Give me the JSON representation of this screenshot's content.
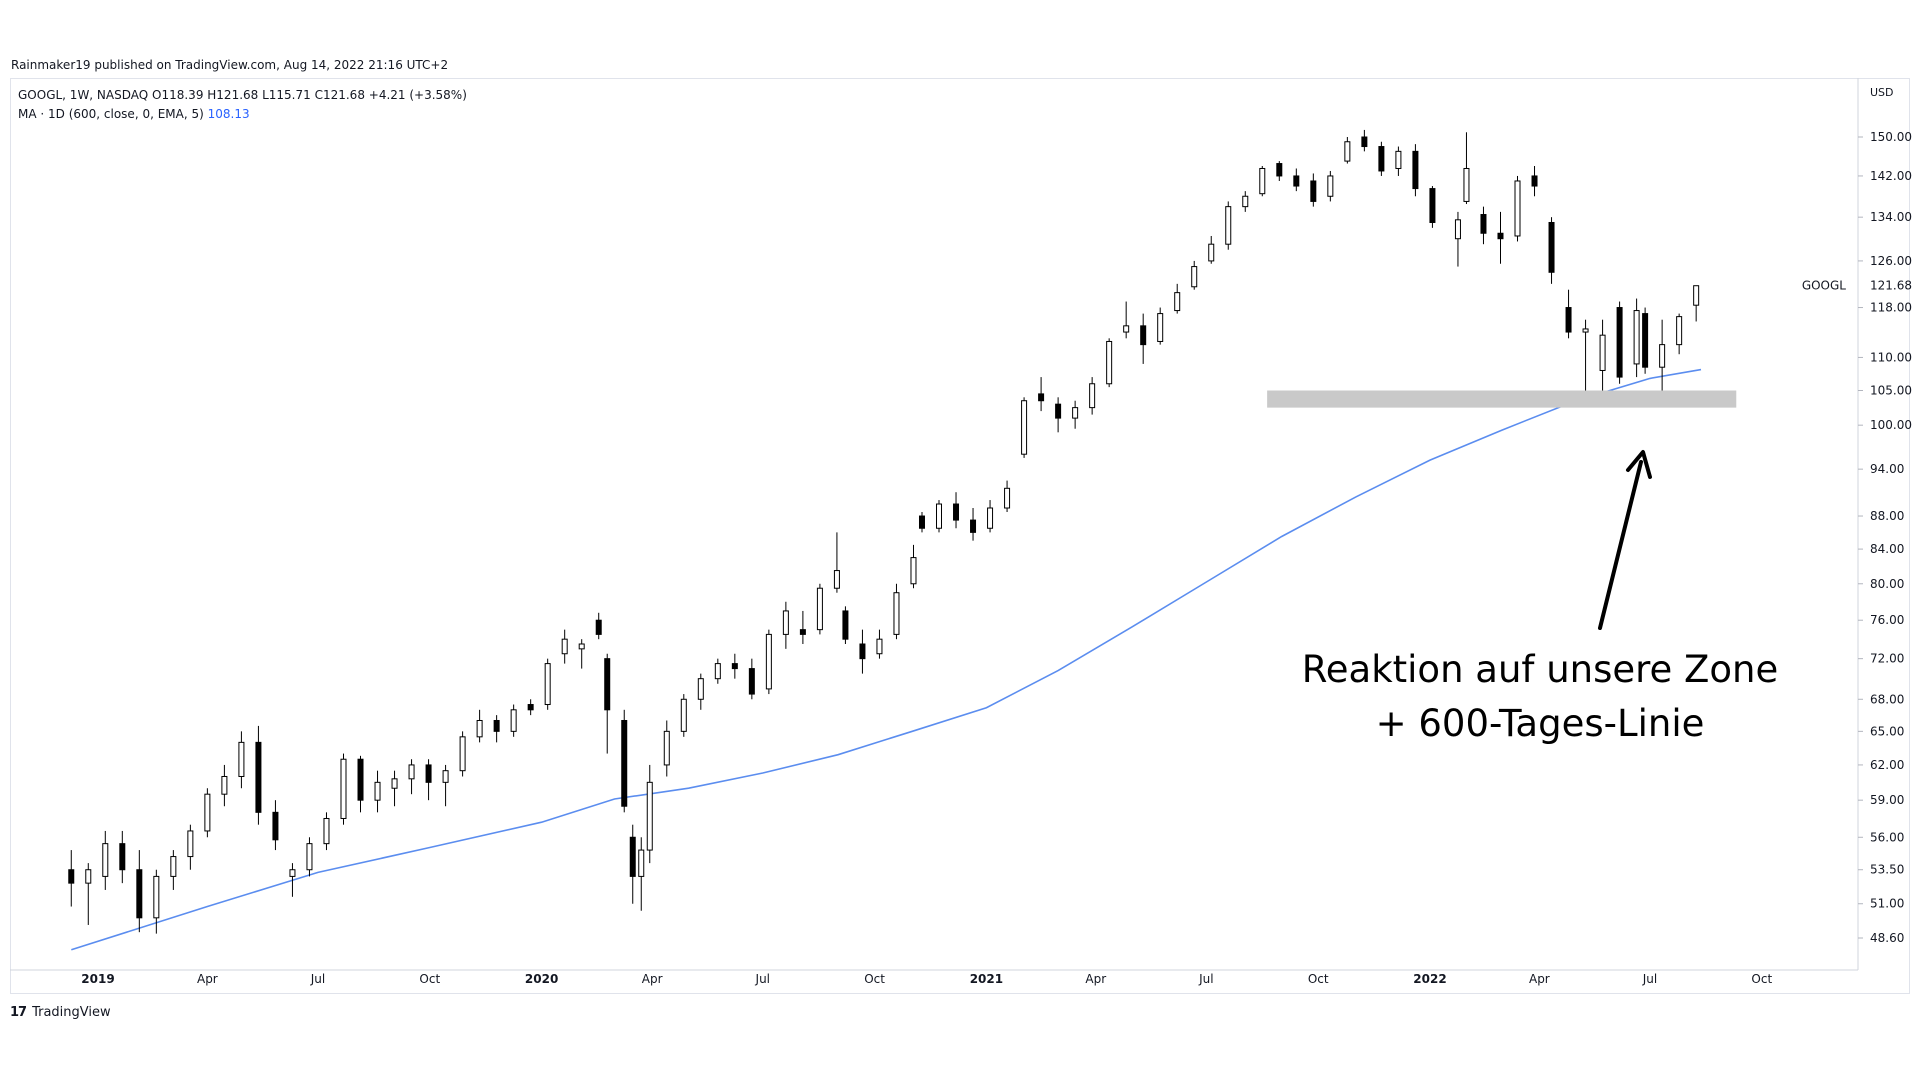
{
  "publisher_line": "Rainmaker19 published on TradingView.com, Aug 14, 2022 21:16 UTC+2",
  "legend": {
    "line1": "GOOGL, 1W, NASDAQ  O118.39  H121.68  L115.71  C121.68  +4.21 (+3.58%)",
    "ma_label": "MA · 1D (600, close, 0, EMA, 5)",
    "ma_value": "108.13"
  },
  "footer": {
    "logo": "17",
    "brand": "TradingView"
  },
  "annotation": {
    "line1": "Reaktion auf unsere Zone",
    "line2": "+ 600-Tages-Linie"
  },
  "colors": {
    "ma_line": "#5b8def",
    "zone": "#c9c9c9",
    "candle_up_fill": "#ffffff",
    "candle_down_fill": "#000000",
    "candle_stroke": "#000000"
  },
  "chart_data": {
    "type": "candlestick",
    "symbol": "GOOGL",
    "interval": "1W",
    "exchange": "NASDAQ",
    "y_scale": "log",
    "yunit": "USD",
    "ylim": [
      45.5,
      158
    ],
    "y_ticks": [
      "150.00",
      "142.00",
      "134.00",
      "126.00",
      "118.00",
      "110.00",
      "105.00",
      "100.00",
      "94.00",
      "88.00",
      "84.00",
      "80.00",
      "76.00",
      "72.00",
      "68.00",
      "65.00",
      "62.00",
      "59.00",
      "56.00",
      "53.50",
      "51.00",
      "48.60"
    ],
    "x_ticks": [
      "2019",
      "Apr",
      "Jul",
      "Oct",
      "2020",
      "Apr",
      "Jul",
      "Oct",
      "2021",
      "Apr",
      "Jul",
      "Oct",
      "2022",
      "Apr",
      "Jul",
      "Oct"
    ],
    "last_price_label": "121.68",
    "last_symbol_label": "GOOGL",
    "zone": {
      "low": 102.5,
      "high": 105.0
    },
    "ma_points": [
      {
        "x": "2018-12-10",
        "y": 47.8
      },
      {
        "x": "2019-04-01",
        "y": 50.8
      },
      {
        "x": "2019-07-01",
        "y": 53.3
      },
      {
        "x": "2019-10-01",
        "y": 55.2
      },
      {
        "x": "2020-01-01",
        "y": 57.2
      },
      {
        "x": "2020-03-01",
        "y": 59.1
      },
      {
        "x": "2020-05-01",
        "y": 60.0
      },
      {
        "x": "2020-07-01",
        "y": 61.3
      },
      {
        "x": "2020-09-01",
        "y": 62.9
      },
      {
        "x": "2020-11-01",
        "y": 65.0
      },
      {
        "x": "2021-01-01",
        "y": 67.2
      },
      {
        "x": "2021-03-01",
        "y": 70.8
      },
      {
        "x": "2021-05-01",
        "y": 75.3
      },
      {
        "x": "2021-07-01",
        "y": 80.2
      },
      {
        "x": "2021-09-01",
        "y": 85.5
      },
      {
        "x": "2021-11-01",
        "y": 90.4
      },
      {
        "x": "2022-01-01",
        "y": 95.2
      },
      {
        "x": "2022-03-01",
        "y": 99.3
      },
      {
        "x": "2022-05-01",
        "y": 103.5
      },
      {
        "x": "2022-07-01",
        "y": 106.8
      },
      {
        "x": "2022-08-12",
        "y": 108.13
      }
    ],
    "candles": [
      {
        "x": "2018-12-10",
        "o": 53.5,
        "h": 55.0,
        "l": 50.8,
        "c": 52.5
      },
      {
        "x": "2018-12-24",
        "o": 52.5,
        "h": 54.0,
        "l": 49.5,
        "c": 53.5
      },
      {
        "x": "2019-01-07",
        "o": 53.0,
        "h": 56.5,
        "l": 52.0,
        "c": 55.5
      },
      {
        "x": "2019-01-21",
        "o": 55.5,
        "h": 56.5,
        "l": 52.5,
        "c": 53.5
      },
      {
        "x": "2019-02-04",
        "o": 53.5,
        "h": 55.0,
        "l": 49.0,
        "c": 50.0
      },
      {
        "x": "2019-02-18",
        "o": 50.0,
        "h": 53.5,
        "l": 48.9,
        "c": 53.0
      },
      {
        "x": "2019-03-04",
        "o": 53.0,
        "h": 55.0,
        "l": 52.0,
        "c": 54.5
      },
      {
        "x": "2019-03-18",
        "o": 54.5,
        "h": 57.0,
        "l": 53.5,
        "c": 56.5
      },
      {
        "x": "2019-04-01",
        "o": 56.5,
        "h": 60.0,
        "l": 56.0,
        "c": 59.5
      },
      {
        "x": "2019-04-15",
        "o": 59.5,
        "h": 62.0,
        "l": 58.5,
        "c": 61.0
      },
      {
        "x": "2019-04-29",
        "o": 61.0,
        "h": 65.0,
        "l": 60.0,
        "c": 64.0
      },
      {
        "x": "2019-05-13",
        "o": 64.0,
        "h": 65.5,
        "l": 57.0,
        "c": 58.0
      },
      {
        "x": "2019-05-27",
        "o": 58.0,
        "h": 59.0,
        "l": 55.0,
        "c": 55.8
      },
      {
        "x": "2019-06-10",
        "o": 53.0,
        "h": 54.0,
        "l": 51.5,
        "c": 53.5
      },
      {
        "x": "2019-06-24",
        "o": 53.5,
        "h": 56.0,
        "l": 53.0,
        "c": 55.5
      },
      {
        "x": "2019-07-08",
        "o": 55.5,
        "h": 58.0,
        "l": 55.0,
        "c": 57.5
      },
      {
        "x": "2019-07-22",
        "o": 57.5,
        "h": 63.0,
        "l": 57.0,
        "c": 62.5
      },
      {
        "x": "2019-08-05",
        "o": 62.5,
        "h": 62.8,
        "l": 58.0,
        "c": 59.0
      },
      {
        "x": "2019-08-19",
        "o": 59.0,
        "h": 61.5,
        "l": 58.0,
        "c": 60.5
      },
      {
        "x": "2019-09-02",
        "o": 60.0,
        "h": 61.5,
        "l": 58.5,
        "c": 60.8
      },
      {
        "x": "2019-09-16",
        "o": 60.8,
        "h": 62.5,
        "l": 59.5,
        "c": 62.0
      },
      {
        "x": "2019-09-30",
        "o": 62.0,
        "h": 62.5,
        "l": 59.0,
        "c": 60.5
      },
      {
        "x": "2019-10-14",
        "o": 60.5,
        "h": 62.0,
        "l": 58.5,
        "c": 61.5
      },
      {
        "x": "2019-10-28",
        "o": 61.5,
        "h": 65.0,
        "l": 61.0,
        "c": 64.5
      },
      {
        "x": "2019-11-11",
        "o": 64.5,
        "h": 67.0,
        "l": 64.0,
        "c": 66.0
      },
      {
        "x": "2019-11-25",
        "o": 66.0,
        "h": 66.5,
        "l": 64.0,
        "c": 65.0
      },
      {
        "x": "2019-12-09",
        "o": 65.0,
        "h": 67.5,
        "l": 64.5,
        "c": 67.0
      },
      {
        "x": "2019-12-23",
        "o": 67.5,
        "h": 68.0,
        "l": 66.5,
        "c": 67.0
      },
      {
        "x": "2020-01-06",
        "o": 67.5,
        "h": 72.0,
        "l": 67.0,
        "c": 71.5
      },
      {
        "x": "2020-01-20",
        "o": 72.5,
        "h": 75.0,
        "l": 71.5,
        "c": 74.0
      },
      {
        "x": "2020-02-03",
        "o": 73.0,
        "h": 74.0,
        "l": 71.0,
        "c": 73.5
      },
      {
        "x": "2020-02-17",
        "o": 76.0,
        "h": 76.8,
        "l": 74.0,
        "c": 74.5
      },
      {
        "x": "2020-02-24",
        "o": 72.0,
        "h": 72.5,
        "l": 63.0,
        "c": 67.0
      },
      {
        "x": "2020-03-09",
        "o": 66.0,
        "h": 67.0,
        "l": 58.0,
        "c": 58.5
      },
      {
        "x": "2020-03-16",
        "o": 56.0,
        "h": 57.0,
        "l": 51.0,
        "c": 53.0
      },
      {
        "x": "2020-03-23",
        "o": 53.0,
        "h": 56.0,
        "l": 50.5,
        "c": 55.0
      },
      {
        "x": "2020-03-30",
        "o": 55.0,
        "h": 62.0,
        "l": 54.0,
        "c": 60.5
      },
      {
        "x": "2020-04-13",
        "o": 62.0,
        "h": 66.0,
        "l": 61.0,
        "c": 65.0
      },
      {
        "x": "2020-04-27",
        "o": 65.0,
        "h": 68.5,
        "l": 64.5,
        "c": 68.0
      },
      {
        "x": "2020-05-11",
        "o": 68.0,
        "h": 70.5,
        "l": 67.0,
        "c": 70.0
      },
      {
        "x": "2020-05-25",
        "o": 70.0,
        "h": 72.0,
        "l": 69.5,
        "c": 71.5
      },
      {
        "x": "2020-06-08",
        "o": 71.5,
        "h": 72.5,
        "l": 70.0,
        "c": 71.0
      },
      {
        "x": "2020-06-22",
        "o": 71.0,
        "h": 72.0,
        "l": 68.0,
        "c": 68.5
      },
      {
        "x": "2020-07-06",
        "o": 69.0,
        "h": 75.0,
        "l": 68.5,
        "c": 74.5
      },
      {
        "x": "2020-07-20",
        "o": 74.5,
        "h": 78.0,
        "l": 73.0,
        "c": 77.0
      },
      {
        "x": "2020-08-03",
        "o": 75.0,
        "h": 77.0,
        "l": 73.5,
        "c": 74.5
      },
      {
        "x": "2020-08-17",
        "o": 75.0,
        "h": 80.0,
        "l": 74.5,
        "c": 79.5
      },
      {
        "x": "2020-08-31",
        "o": 79.5,
        "h": 86.0,
        "l": 79.0,
        "c": 81.5
      },
      {
        "x": "2020-09-07",
        "o": 77.0,
        "h": 77.5,
        "l": 73.5,
        "c": 74.0
      },
      {
        "x": "2020-09-21",
        "o": 73.5,
        "h": 75.0,
        "l": 70.5,
        "c": 72.0
      },
      {
        "x": "2020-10-05",
        "o": 72.5,
        "h": 75.0,
        "l": 72.0,
        "c": 74.0
      },
      {
        "x": "2020-10-19",
        "o": 74.5,
        "h": 80.0,
        "l": 74.0,
        "c": 79.0
      },
      {
        "x": "2020-11-02",
        "o": 80.0,
        "h": 84.5,
        "l": 79.5,
        "c": 83.0
      },
      {
        "x": "2020-11-09",
        "o": 88.0,
        "h": 88.5,
        "l": 86.0,
        "c": 86.5
      },
      {
        "x": "2020-11-23",
        "o": 86.5,
        "h": 90.0,
        "l": 86.0,
        "c": 89.5
      },
      {
        "x": "2020-12-07",
        "o": 89.5,
        "h": 91.0,
        "l": 86.5,
        "c": 87.5
      },
      {
        "x": "2020-12-21",
        "o": 87.5,
        "h": 89.0,
        "l": 85.0,
        "c": 86.0
      },
      {
        "x": "2021-01-04",
        "o": 86.5,
        "h": 90.0,
        "l": 86.0,
        "c": 89.0
      },
      {
        "x": "2021-01-18",
        "o": 89.0,
        "h": 92.5,
        "l": 88.5,
        "c": 91.5
      },
      {
        "x": "2021-02-01",
        "o": 96.0,
        "h": 104.0,
        "l": 95.5,
        "c": 103.5
      },
      {
        "x": "2021-02-15",
        "o": 104.5,
        "h": 107.0,
        "l": 102.0,
        "c": 103.5
      },
      {
        "x": "2021-03-01",
        "o": 103.0,
        "h": 104.0,
        "l": 99.0,
        "c": 101.0
      },
      {
        "x": "2021-03-15",
        "o": 101.0,
        "h": 103.5,
        "l": 99.5,
        "c": 102.5
      },
      {
        "x": "2021-03-29",
        "o": 102.5,
        "h": 107.0,
        "l": 101.5,
        "c": 106.0
      },
      {
        "x": "2021-04-12",
        "o": 106.0,
        "h": 113.0,
        "l": 105.5,
        "c": 112.5
      },
      {
        "x": "2021-04-26",
        "o": 114.0,
        "h": 119.0,
        "l": 113.0,
        "c": 115.0
      },
      {
        "x": "2021-05-10",
        "o": 115.0,
        "h": 117.0,
        "l": 109.0,
        "c": 112.0
      },
      {
        "x": "2021-05-24",
        "o": 112.5,
        "h": 118.0,
        "l": 112.0,
        "c": 117.0
      },
      {
        "x": "2021-06-07",
        "o": 117.5,
        "h": 122.0,
        "l": 117.0,
        "c": 120.5
      },
      {
        "x": "2021-06-21",
        "o": 121.5,
        "h": 126.0,
        "l": 121.0,
        "c": 125.0
      },
      {
        "x": "2021-07-05",
        "o": 126.0,
        "h": 130.5,
        "l": 125.5,
        "c": 129.0
      },
      {
        "x": "2021-07-19",
        "o": 129.0,
        "h": 137.0,
        "l": 128.0,
        "c": 136.0
      },
      {
        "x": "2021-08-02",
        "o": 136.0,
        "h": 139.0,
        "l": 135.0,
        "c": 138.0
      },
      {
        "x": "2021-08-16",
        "o": 138.5,
        "h": 144.0,
        "l": 138.0,
        "c": 143.5
      },
      {
        "x": "2021-08-30",
        "o": 144.5,
        "h": 145.0,
        "l": 141.0,
        "c": 142.0
      },
      {
        "x": "2021-09-13",
        "o": 142.0,
        "h": 143.5,
        "l": 139.0,
        "c": 140.0
      },
      {
        "x": "2021-09-27",
        "o": 141.0,
        "h": 142.5,
        "l": 136.0,
        "c": 137.0
      },
      {
        "x": "2021-10-11",
        "o": 138.0,
        "h": 143.0,
        "l": 137.0,
        "c": 142.0
      },
      {
        "x": "2021-10-25",
        "o": 145.0,
        "h": 150.0,
        "l": 144.5,
        "c": 149.0
      },
      {
        "x": "2021-11-08",
        "o": 150.0,
        "h": 151.5,
        "l": 147.0,
        "c": 148.0
      },
      {
        "x": "2021-11-22",
        "o": 148.0,
        "h": 149.0,
        "l": 142.0,
        "c": 143.0
      },
      {
        "x": "2021-12-06",
        "o": 143.5,
        "h": 148.0,
        "l": 142.0,
        "c": 147.0
      },
      {
        "x": "2021-12-20",
        "o": 147.0,
        "h": 148.5,
        "l": 138.0,
        "c": 139.5
      },
      {
        "x": "2022-01-03",
        "o": 139.5,
        "h": 140.0,
        "l": 132.0,
        "c": 133.0
      },
      {
        "x": "2022-01-24",
        "o": 130.0,
        "h": 135.0,
        "l": 125.0,
        "c": 133.5
      },
      {
        "x": "2022-01-31",
        "o": 137.0,
        "h": 151.0,
        "l": 136.5,
        "c": 143.5
      },
      {
        "x": "2022-02-14",
        "o": 134.5,
        "h": 136.0,
        "l": 129.0,
        "c": 131.0
      },
      {
        "x": "2022-02-28",
        "o": 131.0,
        "h": 135.0,
        "l": 125.5,
        "c": 130.0
      },
      {
        "x": "2022-03-14",
        "o": 130.5,
        "h": 142.0,
        "l": 129.5,
        "c": 141.0
      },
      {
        "x": "2022-03-28",
        "o": 142.0,
        "h": 144.0,
        "l": 138.0,
        "c": 140.0
      },
      {
        "x": "2022-04-11",
        "o": 133.0,
        "h": 134.0,
        "l": 122.0,
        "c": 124.0
      },
      {
        "x": "2022-04-25",
        "o": 118.0,
        "h": 121.0,
        "l": 113.0,
        "c": 114.0
      },
      {
        "x": "2022-05-09",
        "o": 114.0,
        "h": 116.0,
        "l": 105.0,
        "c": 114.5
      },
      {
        "x": "2022-05-23",
        "o": 108.0,
        "h": 116.0,
        "l": 105.0,
        "c": 113.5
      },
      {
        "x": "2022-06-06",
        "o": 118.0,
        "h": 119.0,
        "l": 106.0,
        "c": 107.0
      },
      {
        "x": "2022-06-20",
        "o": 109.0,
        "h": 119.5,
        "l": 107.0,
        "c": 117.5
      },
      {
        "x": "2022-06-27",
        "o": 117.0,
        "h": 118.0,
        "l": 107.5,
        "c": 108.5
      },
      {
        "x": "2022-07-11",
        "o": 108.5,
        "h": 116.0,
        "l": 105.0,
        "c": 112.0
      },
      {
        "x": "2022-07-25",
        "o": 112.0,
        "h": 117.0,
        "l": 110.5,
        "c": 116.5
      },
      {
        "x": "2022-08-08",
        "o": 118.39,
        "h": 121.68,
        "l": 115.71,
        "c": 121.68
      }
    ]
  }
}
